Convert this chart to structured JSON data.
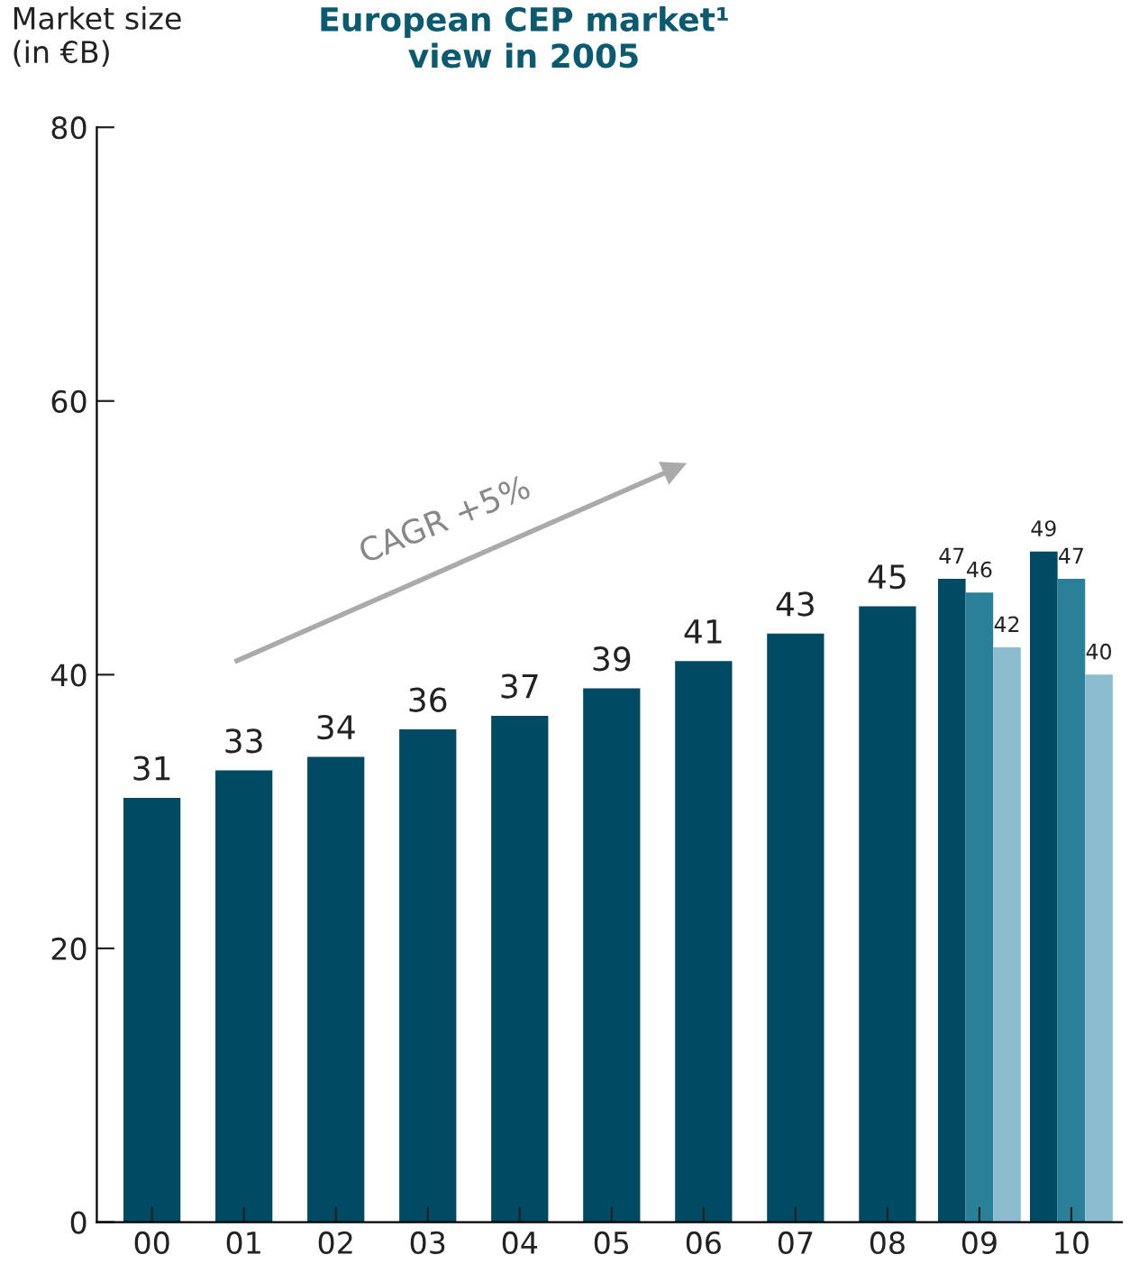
{
  "chart_data": {
    "type": "bar",
    "title": "European CEP market¹\nview in 2005",
    "ylabel": "Market size\n(in €B)",
    "categories": [
      "00",
      "01",
      "02",
      "03",
      "04",
      "05",
      "06",
      "07",
      "08",
      "09",
      "10"
    ],
    "series": [
      {
        "color": "#004b63",
        "values": [
          31,
          33,
          34,
          36,
          37,
          39,
          41,
          43,
          45,
          47,
          49
        ]
      },
      {
        "color": "#2a8099",
        "values": [
          null,
          null,
          null,
          null,
          null,
          null,
          null,
          null,
          null,
          46,
          47
        ]
      },
      {
        "color": "#8bbccf",
        "values": [
          null,
          null,
          null,
          null,
          null,
          null,
          null,
          null,
          null,
          42,
          40
        ]
      }
    ],
    "ylim": [
      0,
      80
    ],
    "yticks": [
      0,
      20,
      40,
      60,
      80
    ],
    "data_labels": true,
    "grid": false,
    "legend": false,
    "annotations": [
      "CAGR +5%"
    ]
  }
}
